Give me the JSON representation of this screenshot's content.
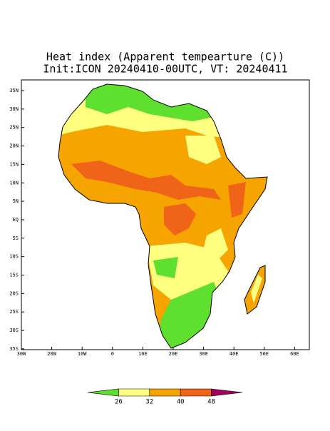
{
  "title": "Heat index (Apparent tempearture (C))",
  "subtitle": "Init:ICON 20240410-00UTC, VT: 20240411",
  "lat_labels": [
    "35N",
    "30N",
    "25N",
    "20N",
    "15N",
    "10N",
    "5N",
    "EQ",
    "5S",
    "10S",
    "15S",
    "20S",
    "25S",
    "30S",
    "35S"
  ],
  "lon_labels": [
    "30W",
    "20W",
    "10W",
    "0",
    "10E",
    "20E",
    "30E",
    "40E",
    "50E",
    "60E"
  ],
  "colorbar": {
    "levels": [
      26,
      32,
      40,
      48
    ],
    "colors": [
      "#5fe02e",
      "#ffff80",
      "#f5a400",
      "#f0641a",
      "#a0005a"
    ]
  }
}
